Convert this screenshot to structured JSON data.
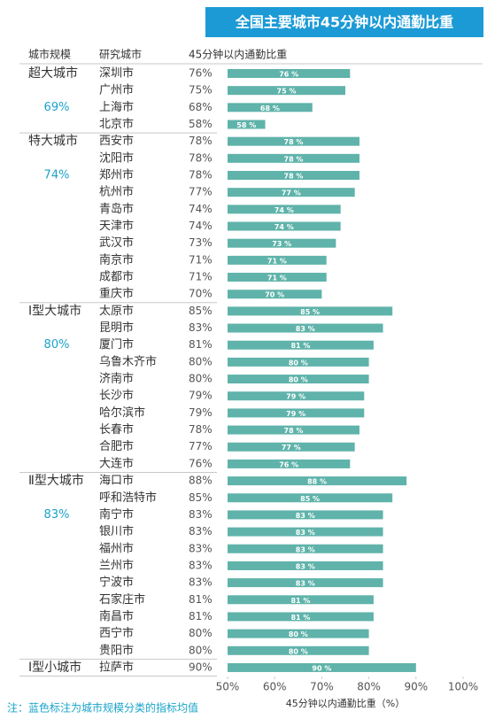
{
  "chart_data": {
    "type": "bar",
    "title": "全国主要城市45分钟以内通勤比重",
    "headers": [
      "城市规模",
      "研究城市",
      "45分钟以内通勤比重"
    ],
    "color": "#5fb3aa",
    "mean_color": "#1aa3c9",
    "groups": [
      {
        "name": "超大城市",
        "value": 69,
        "value_label": "69%",
        "categories": [
          "深圳市",
          "广州市",
          "上海市",
          "北京市"
        ],
        "values": [
          76,
          75,
          68,
          58
        ],
        "value_labels": [
          "76%",
          "75%",
          "68%",
          "58%"
        ],
        "bar_labels": [
          "76 %",
          "75 %",
          "68 %",
          "58 %"
        ]
      },
      {
        "name": "特大城市",
        "value": 74,
        "value_label": "74%",
        "categories": [
          "西安市",
          "沈阳市",
          "郑州市",
          "杭州市",
          "青岛市",
          "天津市",
          "武汉市",
          "南京市",
          "成都市",
          "重庆市"
        ],
        "values": [
          78,
          78,
          78,
          77,
          74,
          74,
          73,
          71,
          71,
          70
        ],
        "value_labels": [
          "78%",
          "78%",
          "78%",
          "77%",
          "74%",
          "74%",
          "73%",
          "71%",
          "71%",
          "70%"
        ],
        "bar_labels": [
          "78 %",
          "78 %",
          "78 %",
          "77 %",
          "74 %",
          "74 %",
          "73 %",
          "71 %",
          "71 %",
          "70 %"
        ]
      },
      {
        "name": "Ⅰ型大城市",
        "value": 80,
        "value_label": "80%",
        "categories": [
          "太原市",
          "昆明市",
          "厦门市",
          "乌鲁木齐市",
          "济南市",
          "长沙市",
          "哈尔滨市",
          "长春市",
          "合肥市",
          "大连市"
        ],
        "values": [
          85,
          83,
          81,
          80,
          80,
          79,
          79,
          78,
          77,
          76
        ],
        "value_labels": [
          "85%",
          "83%",
          "81%",
          "80%",
          "80%",
          "79%",
          "79%",
          "78%",
          "77%",
          "76%"
        ],
        "bar_labels": [
          "85 %",
          "83 %",
          "81 %",
          "80 %",
          "80 %",
          "79 %",
          "79 %",
          "78 %",
          "77 %",
          "76 %"
        ]
      },
      {
        "name": "Ⅱ型大城市",
        "value": 83,
        "value_label": "83%",
        "categories": [
          "海口市",
          "呼和浩特市",
          "南宁市",
          "银川市",
          "福州市",
          "兰州市",
          "宁波市",
          "石家庄市",
          "南昌市",
          "西宁市",
          "贵阳市"
        ],
        "values": [
          88,
          85,
          83,
          83,
          83,
          83,
          83,
          81,
          81,
          80,
          80
        ],
        "value_labels": [
          "88%",
          "85%",
          "83%",
          "83%",
          "83%",
          "83%",
          "83%",
          "81%",
          "81%",
          "80%",
          "80%"
        ],
        "bar_labels": [
          "88 %",
          "85 %",
          "83 %",
          "83 %",
          "83 %",
          "83 %",
          "83 %",
          "81 %",
          "81 %",
          "80 %",
          "80 %"
        ]
      },
      {
        "name": "Ⅰ型小城市",
        "categories": [
          "拉萨市"
        ],
        "values": [
          90
        ],
        "value_labels": [
          "90%"
        ],
        "bar_labels": [
          "90 %"
        ]
      }
    ],
    "xlim": [
      50,
      100
    ],
    "xticks": [
      {
        "value": 50,
        "label": "50%"
      },
      {
        "value": 60,
        "label": "60%"
      },
      {
        "value": 70,
        "label": "70%"
      },
      {
        "value": 80,
        "label": "80%"
      },
      {
        "value": 90,
        "label": "90%"
      },
      {
        "value": 100,
        "label": "100%"
      }
    ],
    "xlabel": "45分钟以内通勤比重（%）",
    "note": "注：蓝色标注为城市规模分类的指标均值"
  }
}
